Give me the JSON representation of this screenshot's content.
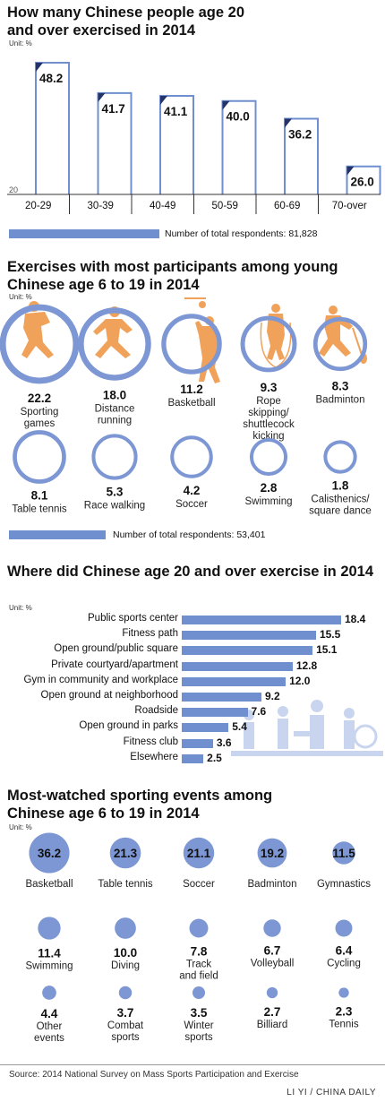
{
  "colors": {
    "bar": "#6f8fcf",
    "ring": "#7d97d4",
    "figure": "#f0a25a",
    "text": "#111111"
  },
  "section1": {
    "title_line1": "How many Chinese people age 20",
    "title_line2": "and over exercised in 2014",
    "unit": "Unit: %",
    "axis_min_label": "20",
    "respondents": "Number of total respondents: 81,828"
  },
  "section2": {
    "title_line1": "Exercises with most participants among young",
    "title_line2": "Chinese age 6 to 19 in 2014",
    "unit": "Unit: %",
    "respondents": "Number of total respondents: 53,401"
  },
  "section3": {
    "title": "Where did Chinese age 20 and over exercise in 2014",
    "unit": "Unit: %"
  },
  "section4": {
    "title_line1": "Most-watched sporting events among",
    "title_line2": "Chinese age 6 to 19 in 2014",
    "unit": "Unit: %"
  },
  "footer": {
    "source": "Source: 2014 National Survey on Mass Sports Participation and Exercise",
    "credit": "LI YI / CHINA DAILY"
  },
  "chart_data": [
    {
      "type": "bar",
      "title": "How many Chinese people age 20 and over exercised in 2014",
      "categories": [
        "20-29",
        "30-39",
        "40-49",
        "50-59",
        "60-69",
        "70-over"
      ],
      "values": [
        48.2,
        41.7,
        41.1,
        40.0,
        36.2,
        26.0
      ],
      "unit": "%",
      "ylim": [
        20,
        50
      ]
    },
    {
      "type": "bubble",
      "title": "Exercises with most participants among young Chinese age 6 to 19 in 2014",
      "unit": "%",
      "categories": [
        "Sporting games",
        "Distance running",
        "Basketball",
        "Rope skipping/ shuttlecock kicking",
        "Badminton",
        "Table tennis",
        "Race walking",
        "Soccer",
        "Swimming",
        "Calisthenics/ square dance"
      ],
      "values": [
        22.2,
        18.0,
        11.2,
        9.3,
        8.3,
        8.1,
        5.3,
        4.2,
        2.8,
        1.8
      ]
    },
    {
      "type": "bar",
      "orientation": "horizontal",
      "title": "Where did Chinese age 20 and over exercise in 2014",
      "unit": "%",
      "categories": [
        "Public sports center",
        "Fitness path",
        "Open ground/public square",
        "Private courtyard/apartment",
        "Gym in community and workplace",
        "Open ground at neighborhood",
        "Roadside",
        "Open ground in parks",
        "Fitness club",
        "Elsewhere"
      ],
      "values": [
        18.4,
        15.5,
        15.1,
        12.8,
        12.0,
        9.2,
        7.6,
        5.4,
        3.6,
        2.5
      ]
    },
    {
      "type": "bubble",
      "title": "Most-watched sporting events among Chinese age 6 to 19 in 2014",
      "unit": "%",
      "categories": [
        "Basketball",
        "Table tennis",
        "Soccer",
        "Badminton",
        "Gymnastics",
        "Swimming",
        "Diving",
        "Track and field",
        "Volleyball",
        "Cycling",
        "Other events",
        "Combat sports",
        "Winter sports",
        "Billiard",
        "Tennis"
      ],
      "values": [
        36.2,
        21.3,
        21.1,
        19.2,
        11.5,
        11.4,
        10.0,
        7.8,
        6.7,
        6.4,
        4.4,
        3.7,
        3.5,
        2.7,
        2.3
      ]
    }
  ]
}
